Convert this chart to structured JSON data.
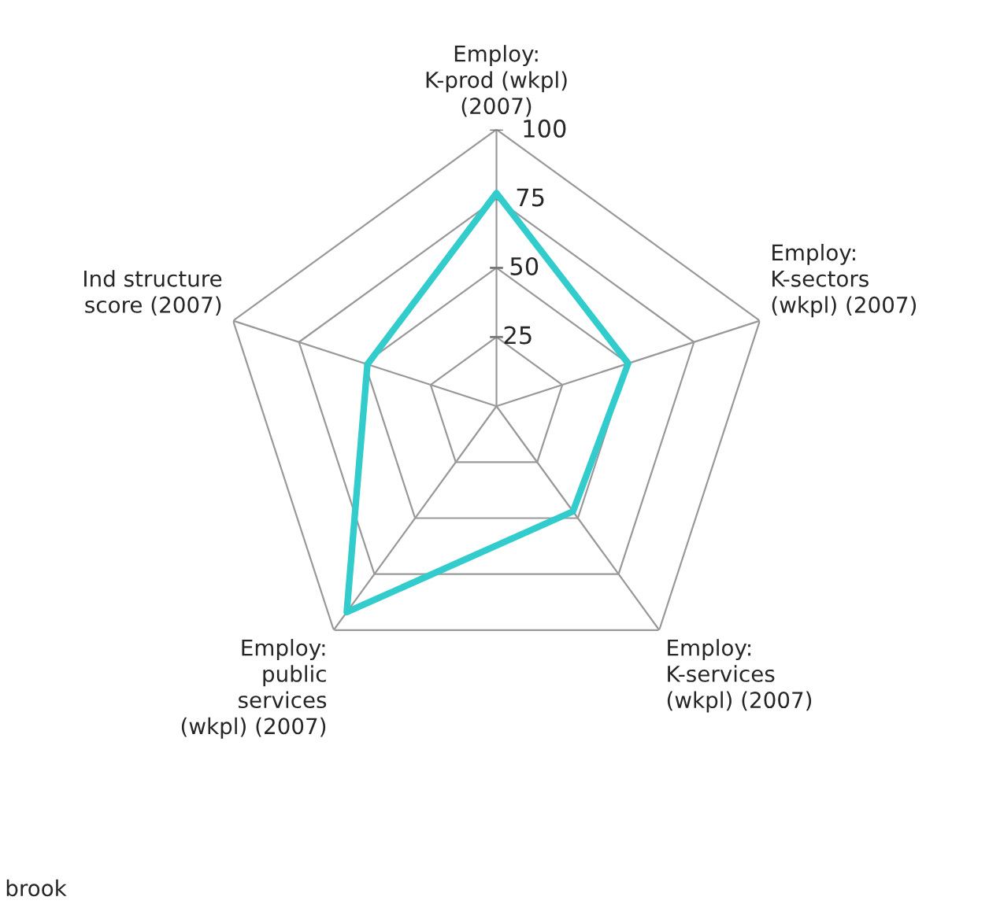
{
  "chart_data": {
    "type": "radar",
    "categories": [
      "Employ:\nK-prod (wkpl)\n(2007)",
      "Employ:\nK-sectors\n(wkpl) (2007)",
      "Employ:\nK-services\n(wkpl) (2007)",
      "Employ:\npublic\nservices\n(wkpl) (2007)",
      "Ind structure\nscore (2007)"
    ],
    "series": [
      {
        "color": "#33cccc",
        "values": [
          77,
          50,
          47,
          92,
          49
        ]
      }
    ],
    "ylim": [
      0,
      100
    ],
    "yticks": [
      25,
      50,
      75,
      100
    ],
    "grid": true,
    "annotations": [
      "brook"
    ]
  }
}
